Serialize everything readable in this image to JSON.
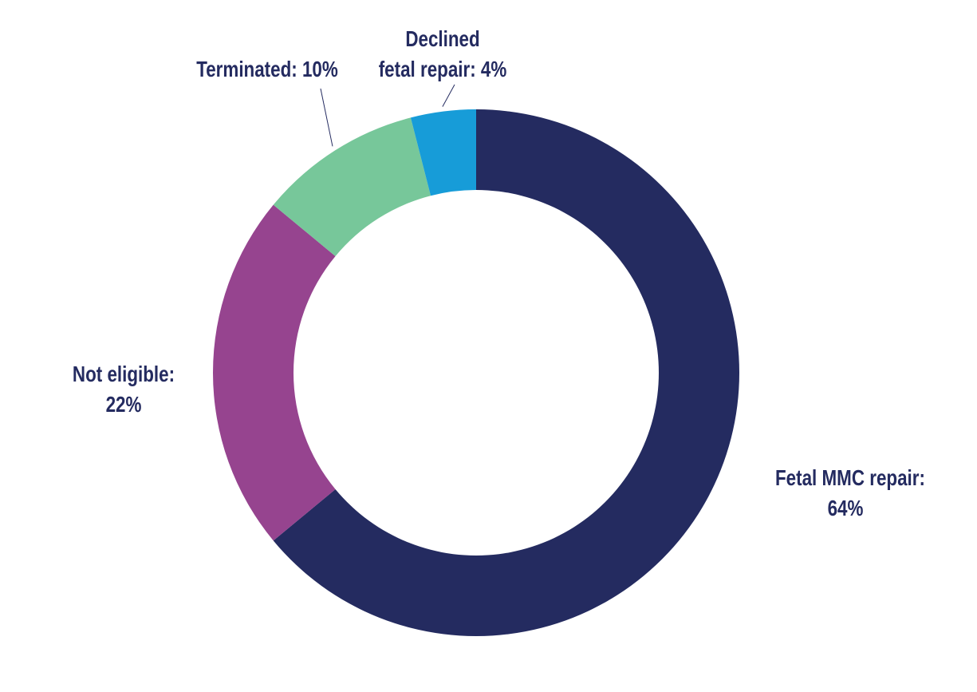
{
  "chart_data": {
    "type": "pie",
    "variant": "donut",
    "title": "",
    "legend": "none",
    "categories": [
      "Fetal MMC repair",
      "Not eligible",
      "Terminated",
      "Declined fetal repair"
    ],
    "values": [
      64,
      22,
      10,
      4
    ],
    "unit": "%",
    "colors": [
      "#242b60",
      "#96448f",
      "#77c79a",
      "#179cd8"
    ],
    "labels": [
      {
        "lines": [
          "Fetal MMC repair:",
          "64%"
        ]
      },
      {
        "lines": [
          "Not eligible:",
          "22%"
        ]
      },
      {
        "lines": [
          "Terminated: 10%"
        ]
      },
      {
        "lines": [
          "Declined",
          "fetal repair: 4%"
        ]
      }
    ]
  }
}
